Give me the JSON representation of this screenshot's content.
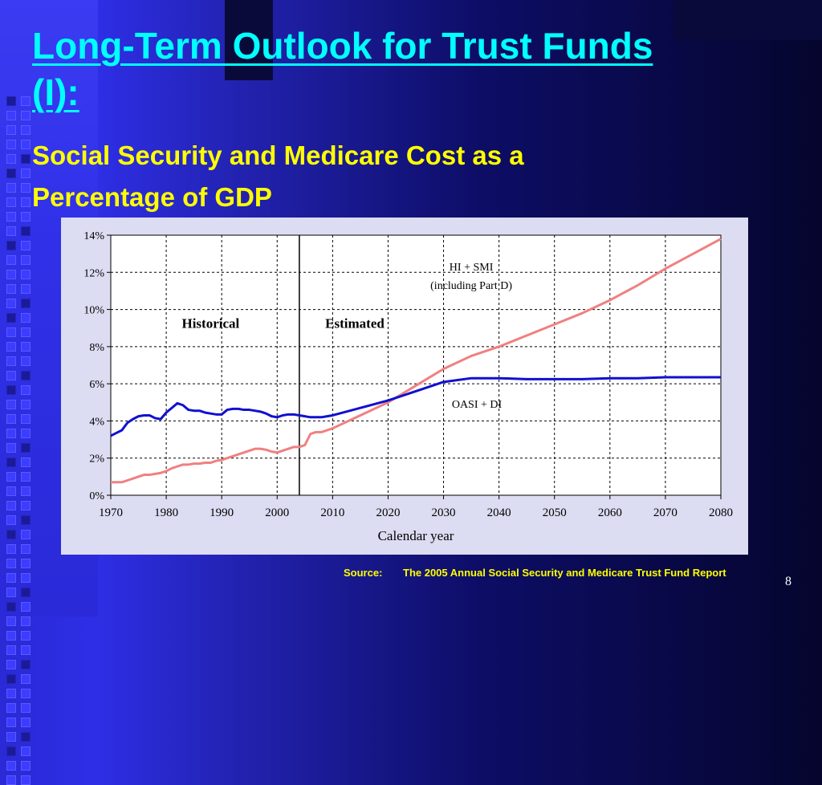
{
  "slide": {
    "title": "Long-Term Outlook for Trust Funds (I):",
    "subtitle": "Social Security and Medicare Cost as a Percentage of GDP",
    "source_label": "Source:",
    "source_text": "The 2005 Annual Social Security and Medicare Trust Fund Report",
    "page_number": "8"
  },
  "chart_data": {
    "type": "line",
    "xlabel": "Calendar year",
    "ylabel": "",
    "xlim": [
      1970,
      2080
    ],
    "ylim": [
      0,
      14
    ],
    "x_ticks": [
      1970,
      1980,
      1990,
      2000,
      2010,
      2020,
      2030,
      2040,
      2050,
      2060,
      2070,
      2080
    ],
    "y_ticks": [
      "0%",
      "2%",
      "4%",
      "6%",
      "8%",
      "10%",
      "12%",
      "14%"
    ],
    "grid": true,
    "divider_year": 2004,
    "region_labels": [
      "Historical",
      "Estimated"
    ],
    "series_label_lines": {
      "hi_smi": [
        "HI + SMI",
        "(including Part D)"
      ],
      "oasi_di": [
        "OASI + DI"
      ]
    },
    "series": [
      {
        "name": "HI + SMI",
        "color": "#f08080",
        "x": [
          1970,
          1971,
          1972,
          1973,
          1974,
          1975,
          1976,
          1977,
          1978,
          1979,
          1980,
          1981,
          1982,
          1983,
          1984,
          1985,
          1986,
          1987,
          1988,
          1989,
          1990,
          1991,
          1992,
          1993,
          1994,
          1995,
          1996,
          1997,
          1998,
          1999,
          2000,
          2001,
          2002,
          2003,
          2004,
          2005,
          2006,
          2007,
          2008,
          2009,
          2010,
          2015,
          2020,
          2025,
          2030,
          2035,
          2040,
          2045,
          2050,
          2055,
          2060,
          2065,
          2070,
          2075,
          2080
        ],
        "y": [
          0.7,
          0.7,
          0.7,
          0.8,
          0.9,
          1.0,
          1.1,
          1.1,
          1.15,
          1.2,
          1.3,
          1.45,
          1.55,
          1.65,
          1.65,
          1.7,
          1.7,
          1.75,
          1.75,
          1.85,
          1.9,
          2.0,
          2.1,
          2.2,
          2.3,
          2.4,
          2.5,
          2.5,
          2.45,
          2.35,
          2.3,
          2.4,
          2.5,
          2.6,
          2.6,
          2.7,
          3.3,
          3.4,
          3.4,
          3.5,
          3.6,
          4.3,
          5.0,
          5.9,
          6.8,
          7.5,
          8.0,
          8.6,
          9.2,
          9.8,
          10.5,
          11.3,
          12.2,
          13.0,
          13.8
        ]
      },
      {
        "name": "OASI + DI",
        "color": "#1010d0",
        "x": [
          1970,
          1971,
          1972,
          1973,
          1974,
          1975,
          1976,
          1977,
          1978,
          1979,
          1980,
          1981,
          1982,
          1983,
          1984,
          1985,
          1986,
          1987,
          1988,
          1989,
          1990,
          1991,
          1992,
          1993,
          1994,
          1995,
          1996,
          1997,
          1998,
          1999,
          2000,
          2001,
          2002,
          2003,
          2004,
          2005,
          2006,
          2007,
          2008,
          2009,
          2010,
          2015,
          2020,
          2025,
          2030,
          2035,
          2040,
          2045,
          2050,
          2055,
          2060,
          2065,
          2070,
          2075,
          2080
        ],
        "y": [
          3.2,
          3.35,
          3.5,
          3.9,
          4.1,
          4.25,
          4.3,
          4.3,
          4.15,
          4.1,
          4.45,
          4.7,
          4.95,
          4.85,
          4.6,
          4.55,
          4.55,
          4.45,
          4.4,
          4.35,
          4.35,
          4.6,
          4.65,
          4.65,
          4.6,
          4.6,
          4.55,
          4.5,
          4.4,
          4.25,
          4.2,
          4.3,
          4.35,
          4.35,
          4.3,
          4.25,
          4.2,
          4.2,
          4.2,
          4.25,
          4.3,
          4.7,
          5.1,
          5.6,
          6.1,
          6.3,
          6.3,
          6.25,
          6.25,
          6.25,
          6.3,
          6.3,
          6.35,
          6.35,
          6.35
        ]
      }
    ]
  }
}
